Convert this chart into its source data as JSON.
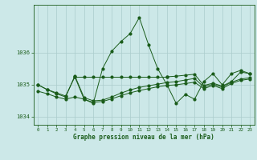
{
  "xlabel": "Graphe pression niveau de la mer (hPa)",
  "hours": [
    0,
    1,
    2,
    3,
    4,
    5,
    6,
    7,
    8,
    9,
    10,
    11,
    12,
    13,
    14,
    15,
    16,
    17,
    18,
    19,
    20,
    21,
    22,
    23
  ],
  "main_y": [
    1035.0,
    1034.85,
    1034.75,
    1034.65,
    1035.25,
    1034.55,
    1034.42,
    1035.5,
    1036.05,
    1036.35,
    1036.6,
    1037.1,
    1036.25,
    1035.5,
    1035.0,
    1034.42,
    1034.7,
    1034.55,
    1035.1,
    1035.35,
    1035.0,
    1035.35,
    1035.45,
    1035.35
  ],
  "lower_y": [
    1034.8,
    1034.72,
    1034.62,
    1034.55,
    1034.62,
    1034.55,
    1034.45,
    1034.48,
    1034.56,
    1034.66,
    1034.75,
    1034.82,
    1034.88,
    1034.94,
    1034.98,
    1035.0,
    1035.04,
    1035.08,
    1034.88,
    1034.98,
    1034.88,
    1035.04,
    1035.14,
    1035.18
  ],
  "upper_y": [
    1035.0,
    1034.85,
    1034.72,
    1034.62,
    1035.28,
    1034.6,
    1034.5,
    1034.52,
    1034.62,
    1034.74,
    1034.84,
    1034.92,
    1034.97,
    1035.02,
    1035.07,
    1035.1,
    1035.15,
    1035.2,
    1034.93,
    1035.02,
    1034.93,
    1035.08,
    1035.18,
    1035.22
  ],
  "flat_segments": [
    {
      "x": [
        4,
        14
      ],
      "y": [
        1035.25,
        1035.25
      ]
    },
    {
      "x": [
        14,
        23
      ],
      "y": [
        1035.25,
        1035.35
      ]
    }
  ],
  "bg_color": "#cce8e8",
  "grid_color": "#aacccc",
  "line_color": "#1a5c1a",
  "ylim_min": 1033.75,
  "ylim_max": 1037.5,
  "yticks": [
    1034,
    1035,
    1036
  ],
  "xlim_min": -0.5,
  "xlim_max": 23.5
}
